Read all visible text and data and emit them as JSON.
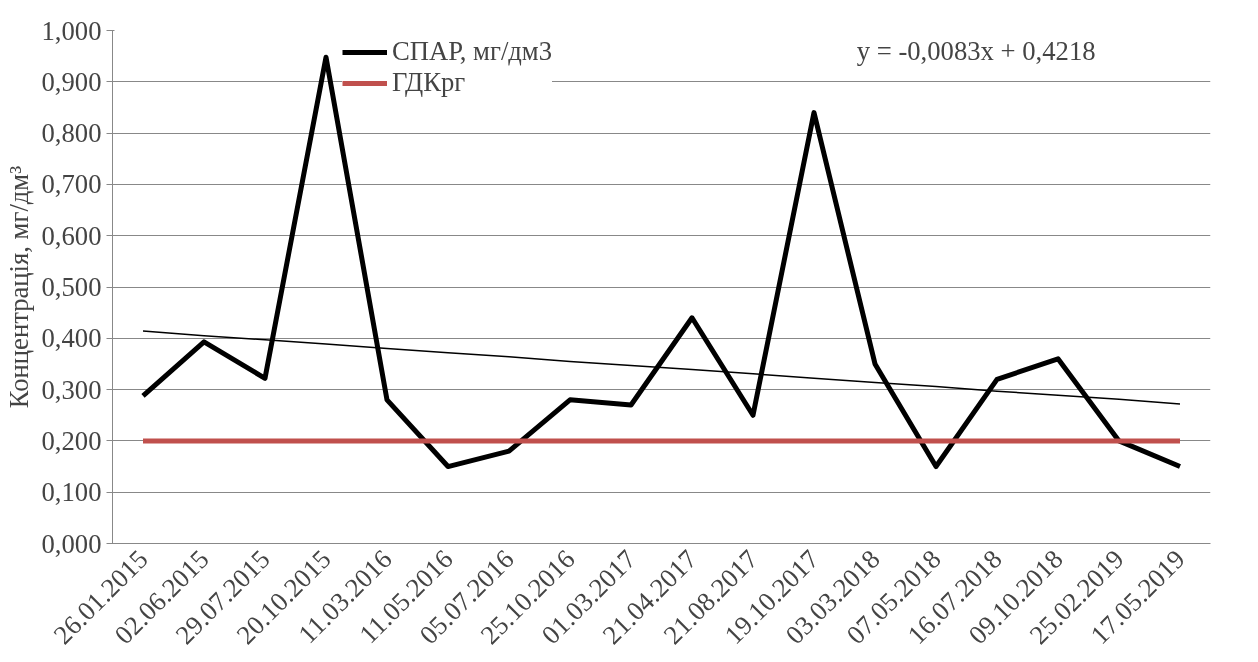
{
  "chart_data": {
    "type": "line",
    "ylabel": "Концентрація, мг/дм³",
    "categories": [
      "26.01.2015",
      "02.06.2015",
      "29.07.2015",
      "20.10.2015",
      "11.03.2016",
      "11.05.2016",
      "05.07.2016",
      "25.10.2016",
      "01.03.2017",
      "21.04.2017",
      "21.08.2017",
      "19.10.2017",
      "03.03.2018",
      "07.05.2018",
      "16.07.2018",
      "09.10.2018",
      "25.02.2019",
      "17.05.2019"
    ],
    "series": [
      {
        "name": "СПАР, мг/дм3",
        "color": "#000000",
        "values": [
          0.288,
          0.393,
          0.322,
          0.948,
          0.28,
          0.15,
          0.18,
          0.28,
          0.27,
          0.44,
          0.25,
          0.84,
          0.35,
          0.15,
          0.32,
          0.36,
          0.2,
          0.15
        ]
      },
      {
        "name": "ГДКрг",
        "color": "#c0504d",
        "values": [
          0.2,
          0.2,
          0.2,
          0.2,
          0.2,
          0.2,
          0.2,
          0.2,
          0.2,
          0.2,
          0.2,
          0.2,
          0.2,
          0.2,
          0.2,
          0.2,
          0.2,
          0.2
        ]
      },
      {
        "color": "#000000",
        "values": [
          0.414,
          0.405,
          0.397,
          0.389,
          0.38,
          0.372,
          0.364,
          0.355,
          0.347,
          0.339,
          0.331,
          0.322,
          0.314,
          0.306,
          0.297,
          0.289,
          0.281,
          0.272
        ]
      }
    ],
    "annotations": [
      "y = -0,0083x + 0,4218"
    ],
    "ylim": [
      0,
      1
    ],
    "yticks": [
      {
        "value": 0,
        "label": "0,000"
      },
      {
        "value": 0.1,
        "label": "0,100"
      },
      {
        "value": 0.2,
        "label": "0,200"
      },
      {
        "value": 0.3,
        "label": "0,300"
      },
      {
        "value": 0.4,
        "label": "0,400"
      },
      {
        "value": 0.5,
        "label": "0,500"
      },
      {
        "value": 0.6,
        "label": "0,600"
      },
      {
        "value": 0.7,
        "label": "0,700"
      },
      {
        "value": 0.8,
        "label": "0,800"
      },
      {
        "value": 0.9,
        "label": "0,900"
      },
      {
        "value": 1,
        "label": "1,000"
      }
    ],
    "grid": "y",
    "legend": "top left",
    "marker": "none",
    "line_style": "solid"
  }
}
